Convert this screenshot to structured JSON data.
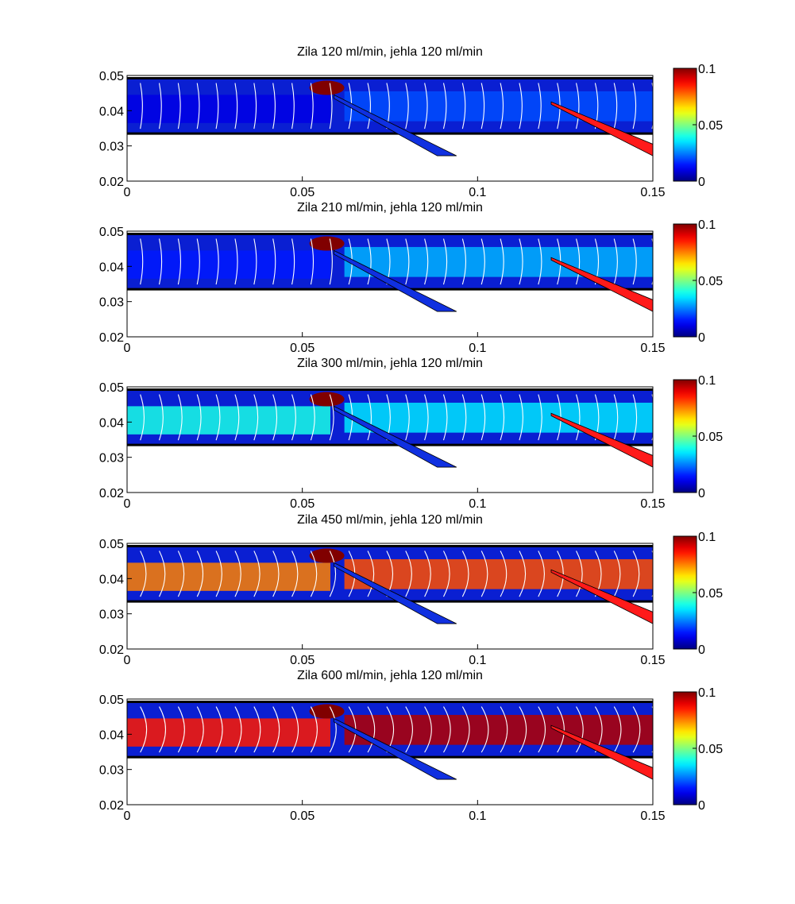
{
  "figure": {
    "colormap": "jet",
    "background": "#ffffff",
    "channel_fill": "#0a1fd2",
    "inlet_needle_color": "#1030e0",
    "outlet_needle_color": "#ff1a1a",
    "vector_color": "#ffffff"
  },
  "chart_data": [
    {
      "type": "heatmap",
      "title": "Zila 120 ml/min, jehla 120 ml/min",
      "xlim": [
        0,
        0.15
      ],
      "ylim": [
        0.02,
        0.05
      ],
      "x_ticks": [
        "0",
        "0.05",
        "0.1",
        "0.15"
      ],
      "y_ticks": [
        "0.02",
        "0.03",
        "0.04",
        "0.05"
      ],
      "colorbar": {
        "range": [
          0,
          0.1
        ],
        "ticks": [
          "0",
          "0.05",
          "0.1"
        ]
      },
      "vein_flow_ml_min": 120,
      "needle_flow_ml_min": 120,
      "jet_peak_velocity": 0.1,
      "core_velocity": 0.01,
      "downstream_velocity": 0.02
    },
    {
      "type": "heatmap",
      "title": "Zila 210 ml/min, jehla 120 ml/min",
      "xlim": [
        0,
        0.15
      ],
      "ylim": [
        0.02,
        0.05
      ],
      "x_ticks": [
        "0",
        "0.05",
        "0.1",
        "0.15"
      ],
      "y_ticks": [
        "0.02",
        "0.03",
        "0.04",
        "0.05"
      ],
      "colorbar": {
        "range": [
          0,
          0.1
        ],
        "ticks": [
          "0",
          "0.05",
          "0.1"
        ]
      },
      "vein_flow_ml_min": 210,
      "needle_flow_ml_min": 120,
      "jet_peak_velocity": 0.1,
      "core_velocity": 0.015,
      "downstream_velocity": 0.03
    },
    {
      "type": "heatmap",
      "title": "Zila 300 ml/min, jehla 120 ml/min",
      "xlim": [
        0,
        0.15
      ],
      "ylim": [
        0.02,
        0.05
      ],
      "x_ticks": [
        "0",
        "0.05",
        "0.1",
        "0.15"
      ],
      "y_ticks": [
        "0.02",
        "0.03",
        "0.04",
        "0.05"
      ],
      "colorbar": {
        "range": [
          0,
          0.1
        ],
        "ticks": [
          "0",
          "0.05",
          "0.1"
        ]
      },
      "vein_flow_ml_min": 300,
      "needle_flow_ml_min": 120,
      "jet_peak_velocity": 0.1,
      "core_velocity": 0.04,
      "downstream_velocity": 0.035
    },
    {
      "type": "heatmap",
      "title": "Zila 450 ml/min, jehla 120 ml/min",
      "xlim": [
        0,
        0.15
      ],
      "ylim": [
        0.02,
        0.05
      ],
      "x_ticks": [
        "0",
        "0.05",
        "0.1",
        "0.15"
      ],
      "y_ticks": [
        "0.02",
        "0.03",
        "0.04",
        "0.05"
      ],
      "colorbar": {
        "range": [
          0,
          0.1
        ],
        "ticks": [
          "0",
          "0.05",
          "0.1"
        ]
      },
      "vein_flow_ml_min": 450,
      "needle_flow_ml_min": 120,
      "jet_peak_velocity": 0.1,
      "core_velocity": 0.075,
      "downstream_velocity": 0.08
    },
    {
      "type": "heatmap",
      "title": "Zila 600 ml/min, jehla 120 ml/min",
      "xlim": [
        0,
        0.15
      ],
      "ylim": [
        0.02,
        0.05
      ],
      "x_ticks": [
        "0",
        "0.05",
        "0.1",
        "0.15"
      ],
      "y_ticks": [
        "0.02",
        "0.03",
        "0.04",
        "0.05"
      ],
      "colorbar": {
        "range": [
          0,
          0.1
        ],
        "ticks": [
          "0",
          "0.05",
          "0.1"
        ]
      },
      "vein_flow_ml_min": 600,
      "needle_flow_ml_min": 120,
      "jet_peak_velocity": 0.1,
      "core_velocity": 0.085,
      "downstream_velocity": 0.095
    }
  ]
}
